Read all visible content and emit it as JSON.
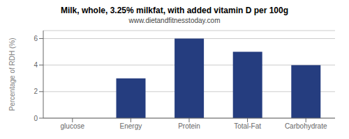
{
  "chart_data": {
    "type": "bar",
    "title": "Milk, whole, 3.25% milkfat, with added vitamin D per 100g",
    "subtitle": "www.dietandfitnesstoday.com",
    "categories": [
      "glucose",
      "Energy",
      "Protein",
      "Total-Fat",
      "Carbohydrate"
    ],
    "values": [
      0,
      3.0,
      6.0,
      5.0,
      4.0
    ],
    "color": "#253d7f",
    "ylabel": "Percentage of RDH (%)",
    "ylim": [
      0,
      6.6
    ],
    "yticks": [
      0,
      2,
      4,
      6
    ],
    "grid": true
  }
}
